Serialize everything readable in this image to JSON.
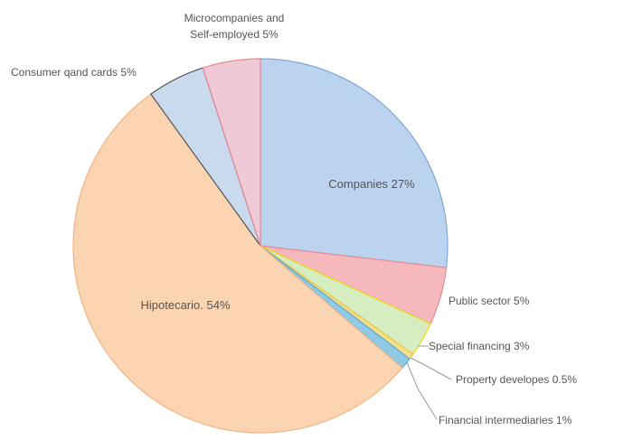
{
  "chart_data": {
    "type": "pie",
    "title": "",
    "start_angle_deg": 0,
    "direction": "clockwise",
    "slices": [
      {
        "label": "Companies 27%",
        "value": 27,
        "color": "#bcd3ef",
        "stroke": "#7fa7d9",
        "label_color": "#3d7fc9"
      },
      {
        "label": "Public sector 5%",
        "value": 5,
        "color": "#f4b8bd",
        "stroke": "#e58a92",
        "label_color": "#555555"
      },
      {
        "label": "Special financing 3%",
        "value": 3,
        "color": "#d6ecc1",
        "stroke": "#f0d800",
        "label_color": "#555555"
      },
      {
        "label": "Property developes 0.5%",
        "value": 0.5,
        "color": "#f6df8a",
        "stroke": "#e6c64a",
        "label_color": "#555555"
      },
      {
        "label": "Financial intermediaries 1%",
        "value": 1,
        "color": "#8fc9e6",
        "stroke": "#5aa9d0",
        "label_color": "#555555"
      },
      {
        "label": "Hipotecario. 54%",
        "value": 54,
        "color": "#fbd4b2",
        "stroke": "#f1b486",
        "label_color": "#e06a3a"
      },
      {
        "label": "Consumer qand cards 5%",
        "value": 5,
        "color": "#c9d9ee",
        "stroke": "#555555",
        "label_color": "#555555"
      },
      {
        "label": "Microcompanies and Self-employed 5%",
        "value": 5,
        "color": "#efc9d6",
        "stroke": "#e58a92",
        "label_color": "#555555"
      }
    ]
  }
}
